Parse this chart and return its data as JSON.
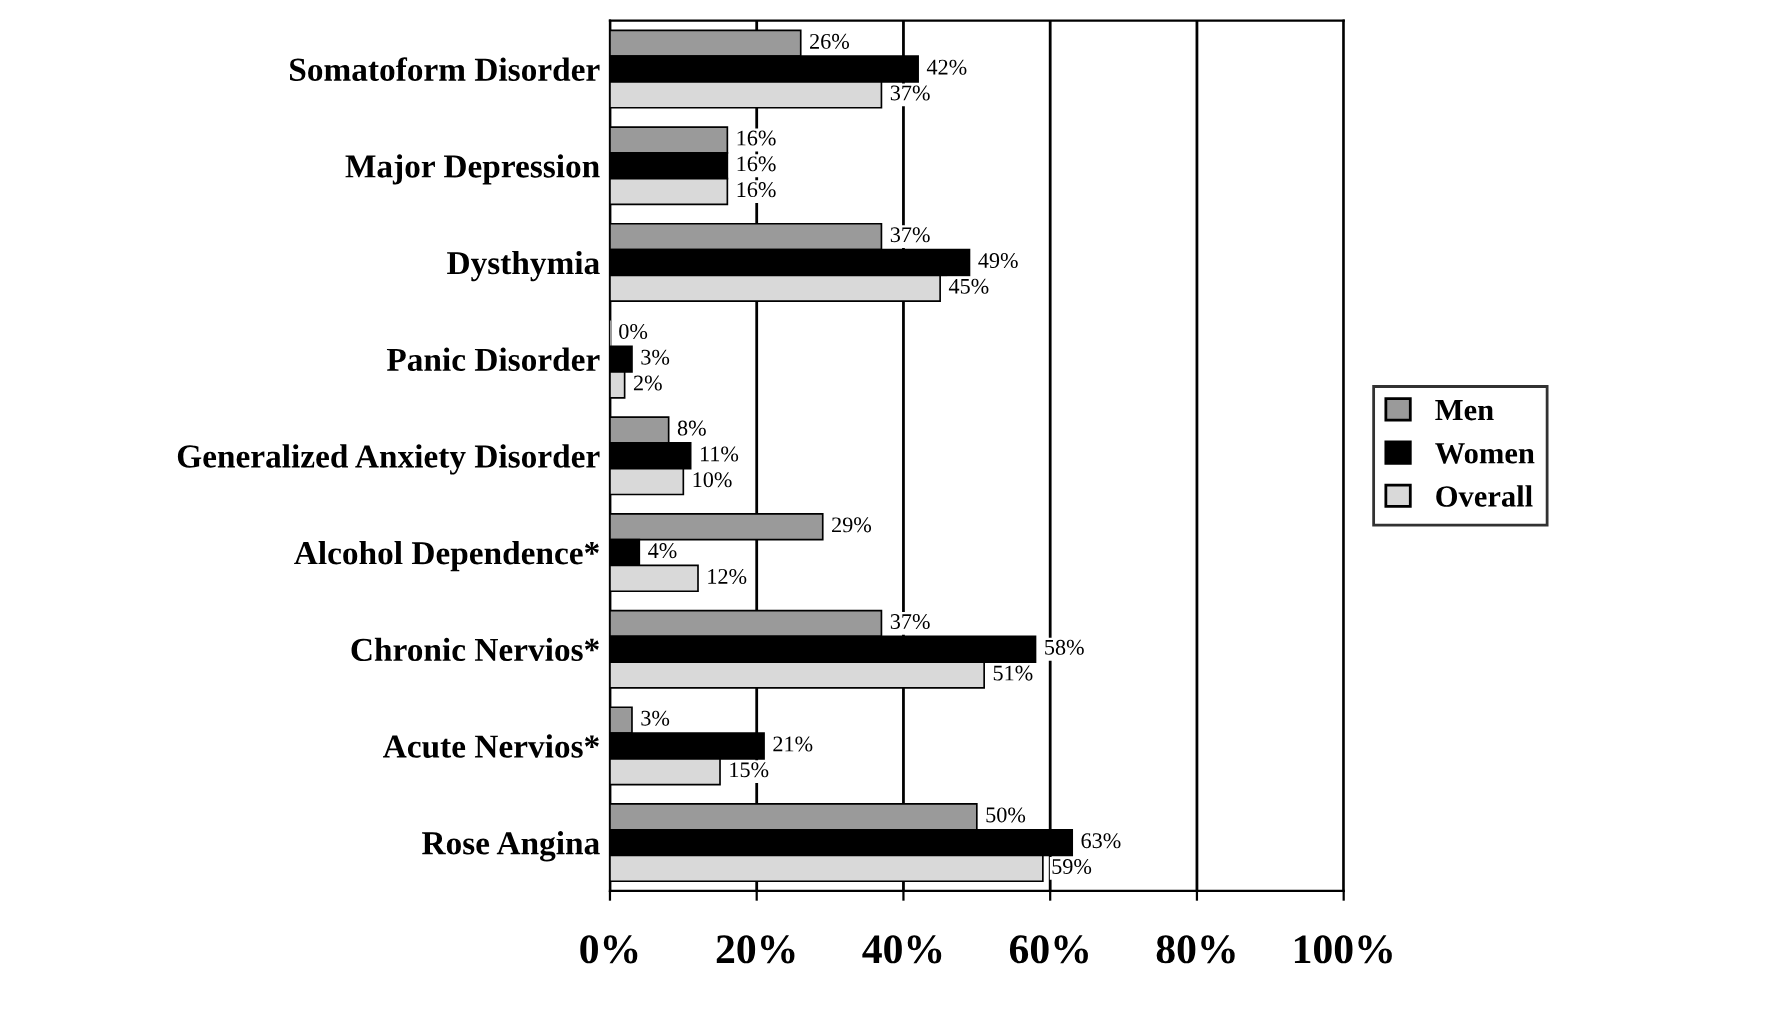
{
  "chart_data": {
    "type": "bar",
    "orientation": "horizontal",
    "categories": [
      "Somatoform Disorder",
      "Major Depression",
      "Dysthymia",
      "Panic Disorder",
      "Generalized Anxiety Disorder",
      "Alcohol Dependence*",
      "Chronic Nervios*",
      "Acute Nervios*",
      "Rose Angina"
    ],
    "series": [
      {
        "name": "Men",
        "color": "#9a9a9a",
        "values": [
          26,
          16,
          37,
          0,
          8,
          29,
          37,
          3,
          50
        ],
        "value_labels": [
          "26%",
          "16%",
          "37%",
          "0%",
          "8%",
          "29%",
          "37%",
          "3%",
          "50%"
        ]
      },
      {
        "name": "Women",
        "color": "#000000",
        "values": [
          42,
          16,
          49,
          3,
          11,
          4,
          58,
          21,
          63
        ],
        "value_labels": [
          "42%",
          "16%",
          "49%",
          "3%",
          "11%",
          "4%",
          "58%",
          "21%",
          "63%"
        ]
      },
      {
        "name": "Overall",
        "color": "#d9d9d9",
        "values": [
          37,
          16,
          45,
          2,
          10,
          12,
          51,
          15,
          59
        ],
        "value_labels": [
          "37%",
          "16%",
          "45%",
          "2%",
          "10%",
          "12%",
          "51%",
          "15%",
          "59%"
        ]
      }
    ],
    "xlim": [
      0,
      100
    ],
    "xticks": [
      {
        "value": 0,
        "label": "0%"
      },
      {
        "value": 20,
        "label": "20%"
      },
      {
        "value": 40,
        "label": "40%"
      },
      {
        "value": 60,
        "label": "60%"
      },
      {
        "value": 80,
        "label": "80%"
      },
      {
        "value": 100,
        "label": "100%"
      }
    ],
    "grid": "x",
    "legend": "right"
  }
}
